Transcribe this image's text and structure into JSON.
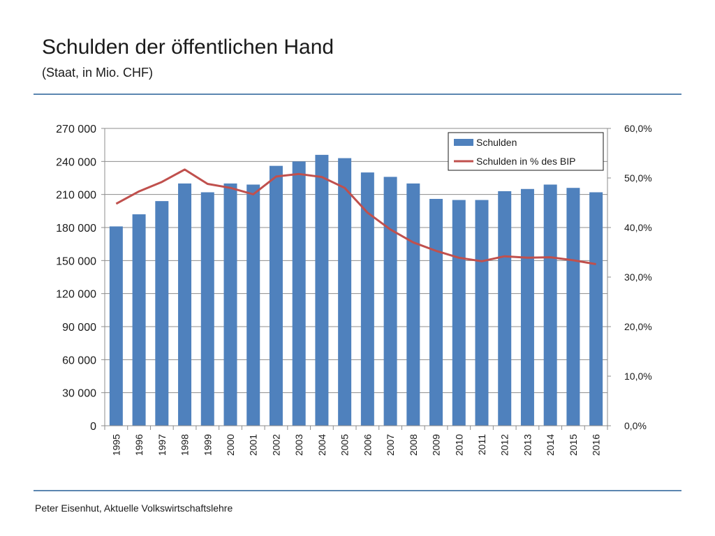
{
  "slide": {
    "title": "Schulden der öffentlichen Hand",
    "subtitle": "(Staat, in Mio. CHF)",
    "footer": "Peter Eisenhut, Aktuelle Volkswirtschaftslehre"
  },
  "colors": {
    "bar": "#4f81bd",
    "line": "#c0504d",
    "rule": "#5b86b0",
    "grid": "#8c8c8c"
  },
  "chart_data": {
    "type": "bar",
    "title": "Schulden der öffentlichen Hand",
    "subtitle": "(Staat, in Mio. CHF)",
    "categories": [
      "1995",
      "1996",
      "1997",
      "1998",
      "1999",
      "2000",
      "2001",
      "2002",
      "2003",
      "2004",
      "2005",
      "2006",
      "2007",
      "2008",
      "2009",
      "2010",
      "2011",
      "2012",
      "2013",
      "2014",
      "2015",
      "2016"
    ],
    "series": [
      {
        "name": "Schulden",
        "type": "bar",
        "axis": "left",
        "values": [
          181000,
          192000,
          204000,
          220000,
          212000,
          220000,
          219000,
          236000,
          240000,
          246000,
          243000,
          230000,
          226000,
          220000,
          206000,
          205000,
          205000,
          213000,
          215000,
          219000,
          216000,
          212000
        ]
      },
      {
        "name": "Schulden in % des BIP",
        "type": "line",
        "axis": "right",
        "values": [
          44.8,
          47.3,
          49.2,
          51.7,
          48.8,
          48.0,
          46.7,
          50.3,
          50.8,
          50.2,
          48.0,
          43.0,
          39.6,
          37.0,
          35.3,
          33.9,
          33.2,
          34.2,
          33.9,
          34.0,
          33.4,
          32.6
        ]
      }
    ],
    "ylim": [
      0,
      270000
    ],
    "yticks": [
      "0",
      "30 000",
      "60 000",
      "90 000",
      "120 000",
      "150 000",
      "180 000",
      "210 000",
      "240 000",
      "270 000"
    ],
    "y2lim": [
      0,
      60
    ],
    "y2ticks": [
      "0,0%",
      "10,0%",
      "20,0%",
      "30,0%",
      "40,0%",
      "50,0%",
      "60,0%"
    ],
    "xlabel": "",
    "ylabel": "",
    "grid": true,
    "legend": "top-right"
  }
}
